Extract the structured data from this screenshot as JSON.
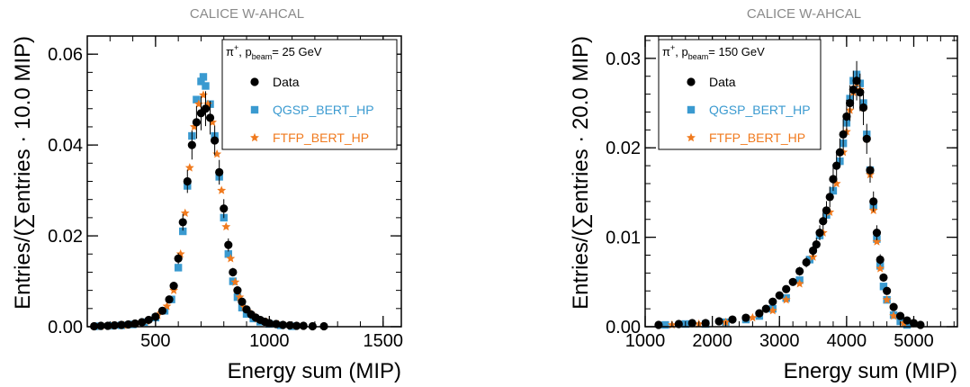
{
  "colors": {
    "data": "#000000",
    "qgsp": "#3a9ad0",
    "ftfp": "#f07a1e",
    "legend_qgsp_text": "#3a9ad0",
    "legend_ftfp_text": "#f07a1e"
  },
  "chart_data": [
    {
      "type": "scatter",
      "title": "CALICE W-AHCAL",
      "beam_label": {
        "pre": "π",
        "sup": "+",
        "mid": ", p",
        "sub": "beam",
        "post": "= 25 GeV"
      },
      "xlabel": "Energy sum (MIP)",
      "ylabel": "Entries/(∑entries · 10.0 MIP)",
      "xlim": [
        200,
        1580
      ],
      "ylim": [
        0,
        0.064
      ],
      "xticks": [
        500,
        1000,
        1500
      ],
      "xtick_labels": [
        "500",
        "1000",
        "1500"
      ],
      "yticks": [
        0,
        0.02,
        0.04,
        0.06
      ],
      "ytick_labels": [
        "0.00",
        "0.02",
        "0.04",
        "0.06"
      ],
      "grid": false,
      "legend_position": "top-right",
      "series": [
        {
          "name": "Data",
          "marker": "circle",
          "x": [
            230,
            260,
            290,
            320,
            350,
            380,
            410,
            440,
            470,
            500,
            530,
            560,
            580,
            600,
            620,
            640,
            660,
            680,
            700,
            720,
            740,
            760,
            780,
            800,
            820,
            840,
            860,
            880,
            900,
            920,
            940,
            960,
            980,
            1000,
            1030,
            1060,
            1090,
            1120,
            1150,
            1190,
            1240
          ],
          "y": [
            0.0001,
            0.0002,
            0.0002,
            0.0003,
            0.0004,
            0.0005,
            0.0007,
            0.001,
            0.0015,
            0.0022,
            0.0035,
            0.006,
            0.009,
            0.015,
            0.023,
            0.032,
            0.04,
            0.045,
            0.047,
            0.048,
            0.046,
            0.041,
            0.034,
            0.026,
            0.018,
            0.012,
            0.008,
            0.0055,
            0.0038,
            0.0027,
            0.002,
            0.0015,
            0.0011,
            0.0008,
            0.0006,
            0.0004,
            0.0003,
            0.0002,
            0.0002,
            0.0001,
            0.0001
          ]
        },
        {
          "name": "QGSP_BERT_HP",
          "marker": "square",
          "x": [
            250,
            300,
            350,
            400,
            450,
            500,
            540,
            570,
            600,
            620,
            640,
            660,
            680,
            700,
            710,
            720,
            740,
            760,
            780,
            800,
            820,
            840,
            860,
            880,
            900,
            930,
            960,
            1000,
            1050,
            1100
          ],
          "y": [
            0.0001,
            0.0002,
            0.0003,
            0.0005,
            0.001,
            0.002,
            0.0035,
            0.006,
            0.013,
            0.021,
            0.031,
            0.042,
            0.05,
            0.054,
            0.055,
            0.053,
            0.049,
            0.042,
            0.033,
            0.024,
            0.016,
            0.01,
            0.0065,
            0.0042,
            0.0028,
            0.0018,
            0.0011,
            0.0006,
            0.0003,
            0.0001
          ]
        },
        {
          "name": "FTFP_BERT_HP",
          "marker": "star",
          "x": [
            260,
            310,
            360,
            410,
            460,
            510,
            550,
            580,
            610,
            630,
            650,
            670,
            690,
            710,
            730,
            750,
            770,
            790,
            810,
            830,
            850,
            870,
            890,
            920,
            950,
            990,
            1040,
            1100
          ],
          "y": [
            0.0001,
            0.0002,
            0.0003,
            0.0006,
            0.0012,
            0.0025,
            0.0045,
            0.008,
            0.016,
            0.025,
            0.035,
            0.044,
            0.049,
            0.051,
            0.049,
            0.045,
            0.038,
            0.03,
            0.022,
            0.015,
            0.0098,
            0.0065,
            0.0043,
            0.0028,
            0.0017,
            0.001,
            0.0005,
            0.0002
          ]
        }
      ]
    },
    {
      "type": "scatter",
      "title": "CALICE W-AHCAL",
      "beam_label": {
        "pre": "π",
        "sup": "+",
        "mid": ", p",
        "sub": "beam",
        "post": "= 150 GeV"
      },
      "xlabel": "Energy sum (MIP)",
      "ylabel": "Entries/(∑entries · 20.0 MIP)",
      "xlim": [
        1000,
        5650
      ],
      "ylim": [
        0,
        0.0325
      ],
      "xticks": [
        1000,
        2000,
        3000,
        4000,
        5000
      ],
      "xtick_labels": [
        "1000",
        "2000",
        "3000",
        "4000",
        "5000"
      ],
      "yticks": [
        0,
        0.01,
        0.02,
        0.03
      ],
      "ytick_labels": [
        "0.00",
        "0.01",
        "0.02",
        "0.03"
      ],
      "grid": false,
      "legend_position": "top-left",
      "series": [
        {
          "name": "Data",
          "marker": "circle",
          "x": [
            1200,
            1500,
            1700,
            1900,
            2100,
            2300,
            2500,
            2700,
            2800,
            2900,
            3000,
            3100,
            3200,
            3300,
            3400,
            3500,
            3550,
            3600,
            3650,
            3700,
            3750,
            3800,
            3850,
            3900,
            3950,
            4000,
            4050,
            4100,
            4150,
            4200,
            4250,
            4300,
            4350,
            4400,
            4450,
            4500,
            4550,
            4600,
            4700,
            4800,
            4900,
            5000,
            5100
          ],
          "y": [
            0.0002,
            0.0003,
            0.0004,
            0.0004,
            0.0006,
            0.0008,
            0.001,
            0.0015,
            0.002,
            0.0028,
            0.0035,
            0.0042,
            0.005,
            0.0062,
            0.0072,
            0.0085,
            0.0092,
            0.0105,
            0.0118,
            0.013,
            0.0145,
            0.0165,
            0.018,
            0.0195,
            0.0215,
            0.0235,
            0.025,
            0.0265,
            0.0275,
            0.0262,
            0.0245,
            0.021,
            0.0175,
            0.014,
            0.0105,
            0.0075,
            0.0055,
            0.004,
            0.0022,
            0.0012,
            0.0007,
            0.0004,
            0.0002
          ]
        },
        {
          "name": "QGSP_BERT_HP",
          "marker": "square",
          "x": [
            1300,
            1600,
            1900,
            2200,
            2500,
            2700,
            2900,
            3100,
            3300,
            3450,
            3600,
            3700,
            3800,
            3900,
            3950,
            4000,
            4050,
            4100,
            4150,
            4200,
            4250,
            4300,
            4350,
            4400,
            4450,
            4500,
            4550,
            4600,
            4700,
            4800,
            4900
          ],
          "y": [
            0.0002,
            0.0003,
            0.0003,
            0.0005,
            0.0008,
            0.0012,
            0.002,
            0.0032,
            0.0052,
            0.0075,
            0.0102,
            0.0125,
            0.0152,
            0.0185,
            0.0205,
            0.0228,
            0.0255,
            0.0275,
            0.0282,
            0.0272,
            0.025,
            0.0215,
            0.0175,
            0.0135,
            0.0098,
            0.0068,
            0.0045,
            0.003,
            0.0013,
            0.0006,
            0.0002
          ]
        },
        {
          "name": "FTFP_BERT_HP",
          "marker": "star",
          "x": [
            1400,
            1800,
            2200,
            2600,
            2900,
            3100,
            3300,
            3500,
            3650,
            3750,
            3850,
            3950,
            4000,
            4050,
            4100,
            4150,
            4200,
            4250,
            4300,
            4350,
            4400,
            4450,
            4500,
            4600,
            4700,
            4850
          ],
          "y": [
            0.0002,
            0.0003,
            0.0005,
            0.001,
            0.0018,
            0.003,
            0.0048,
            0.0078,
            0.0105,
            0.0128,
            0.016,
            0.0195,
            0.0218,
            0.0242,
            0.0262,
            0.0272,
            0.0265,
            0.0245,
            0.021,
            0.017,
            0.013,
            0.0095,
            0.0065,
            0.003,
            0.0012,
            0.0004
          ]
        }
      ]
    }
  ]
}
